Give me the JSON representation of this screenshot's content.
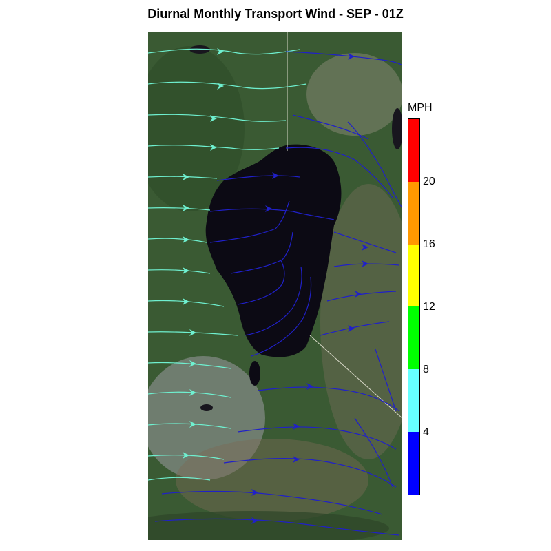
{
  "title": "Diurnal Monthly Transport Wind - SEP - 01Z",
  "colorbar": {
    "unit": "MPH",
    "ticks": [
      "20",
      "16",
      "12",
      "8",
      "4"
    ],
    "colors_top_to_bottom": [
      "#ff0000",
      "#ff9900",
      "#ffff00",
      "#00ff00",
      "#66ffff",
      "#0000ff"
    ]
  },
  "map": {
    "lake_color": "#0c0a14",
    "vegetation_color": "#3d5a30",
    "streamline_colors": {
      "slow": "#2020c8",
      "moderate": "#6ff0d0"
    }
  }
}
